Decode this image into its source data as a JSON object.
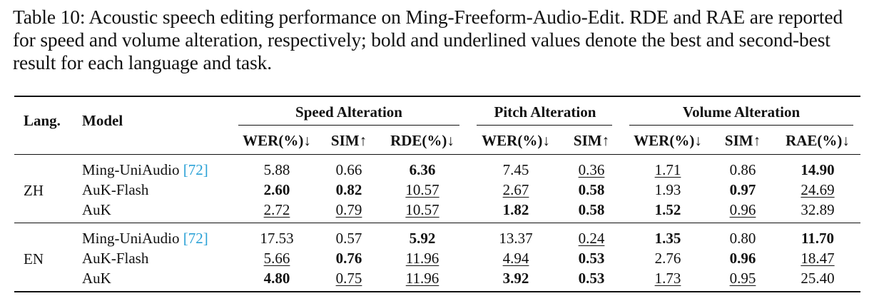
{
  "caption": "Table 10: Acoustic speech editing performance on Ming-Freeform-Audio-Edit. RDE and RAE are reported for speed and volume alteration, respectively; bold and underlined values denote the best and second-best result for each language and task.",
  "table": {
    "header": {
      "lang": "Lang.",
      "model": "Model",
      "groups": [
        "Speed Alteration",
        "Pitch Alteration",
        "Volume Alteration"
      ],
      "subcols": [
        "WER(%)↓",
        "SIM↑",
        "RDE(%)↓",
        "WER(%)↓",
        "SIM↑",
        "WER(%)↓",
        "SIM↑",
        "RAE(%)↓"
      ]
    },
    "sections": [
      {
        "lang": "ZH",
        "rows": [
          {
            "model": "Ming-UniAudio",
            "cite": "[72]",
            "values": [
              {
                "v": "5.88",
                "s": ""
              },
              {
                "v": "0.66",
                "s": ""
              },
              {
                "v": "6.36",
                "s": "b"
              },
              {
                "v": "7.45",
                "s": ""
              },
              {
                "v": "0.36",
                "s": "u"
              },
              {
                "v": "1.71",
                "s": "u"
              },
              {
                "v": "0.86",
                "s": ""
              },
              {
                "v": "14.90",
                "s": "b"
              }
            ]
          },
          {
            "model": "AuK-Flash",
            "cite": "",
            "values": [
              {
                "v": "2.60",
                "s": "b"
              },
              {
                "v": "0.82",
                "s": "b"
              },
              {
                "v": "10.57",
                "s": "u"
              },
              {
                "v": "2.67",
                "s": "u"
              },
              {
                "v": "0.58",
                "s": "b"
              },
              {
                "v": "1.93",
                "s": ""
              },
              {
                "v": "0.97",
                "s": "b"
              },
              {
                "v": "24.69",
                "s": "u"
              }
            ]
          },
          {
            "model": "AuK",
            "cite": "",
            "values": [
              {
                "v": "2.72",
                "s": "u"
              },
              {
                "v": "0.79",
                "s": "u"
              },
              {
                "v": "10.57",
                "s": "u"
              },
              {
                "v": "1.82",
                "s": "b"
              },
              {
                "v": "0.58",
                "s": "b"
              },
              {
                "v": "1.52",
                "s": "b"
              },
              {
                "v": "0.96",
                "s": "u"
              },
              {
                "v": "32.89",
                "s": ""
              }
            ]
          }
        ]
      },
      {
        "lang": "EN",
        "rows": [
          {
            "model": "Ming-UniAudio",
            "cite": "[72]",
            "values": [
              {
                "v": "17.53",
                "s": ""
              },
              {
                "v": "0.57",
                "s": ""
              },
              {
                "v": "5.92",
                "s": "b"
              },
              {
                "v": "13.37",
                "s": ""
              },
              {
                "v": "0.24",
                "s": "u"
              },
              {
                "v": "1.35",
                "s": "b"
              },
              {
                "v": "0.80",
                "s": ""
              },
              {
                "v": "11.70",
                "s": "b"
              }
            ]
          },
          {
            "model": "AuK-Flash",
            "cite": "",
            "values": [
              {
                "v": "5.66",
                "s": "u"
              },
              {
                "v": "0.76",
                "s": "b"
              },
              {
                "v": "11.96",
                "s": "u"
              },
              {
                "v": "4.94",
                "s": "u"
              },
              {
                "v": "0.53",
                "s": "b"
              },
              {
                "v": "2.76",
                "s": ""
              },
              {
                "v": "0.96",
                "s": "b"
              },
              {
                "v": "18.47",
                "s": "u"
              }
            ]
          },
          {
            "model": "AuK",
            "cite": "",
            "values": [
              {
                "v": "4.80",
                "s": "b"
              },
              {
                "v": "0.75",
                "s": "u"
              },
              {
                "v": "11.96",
                "s": "u"
              },
              {
                "v": "3.92",
                "s": "b"
              },
              {
                "v": "0.53",
                "s": "b"
              },
              {
                "v": "1.73",
                "s": "u"
              },
              {
                "v": "0.95",
                "s": "u"
              },
              {
                "v": "25.40",
                "s": ""
              }
            ]
          }
        ]
      }
    ]
  }
}
